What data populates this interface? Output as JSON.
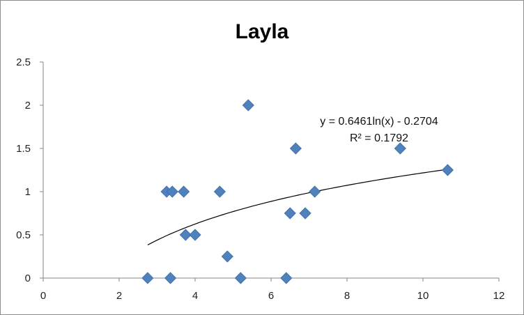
{
  "chart_data": {
    "type": "scatter",
    "title": "Layla",
    "xlabel": "",
    "ylabel": "",
    "xlim": [
      0,
      12
    ],
    "ylim": [
      0,
      2.5
    ],
    "x_ticks": [
      "0",
      "2",
      "4",
      "6",
      "8",
      "10",
      "12"
    ],
    "y_ticks": [
      "0",
      "0.5",
      "1",
      "1.5",
      "2",
      "2.5"
    ],
    "grid": false,
    "legend": "none",
    "marker": "diamond",
    "marker_color": "#4f81bd",
    "points": [
      {
        "x": 2.75,
        "y": 0
      },
      {
        "x": 3.25,
        "y": 1
      },
      {
        "x": 3.35,
        "y": 0
      },
      {
        "x": 3.4,
        "y": 1
      },
      {
        "x": 3.7,
        "y": 1
      },
      {
        "x": 3.75,
        "y": 0.5
      },
      {
        "x": 4.0,
        "y": 0.5
      },
      {
        "x": 4.65,
        "y": 1
      },
      {
        "x": 4.85,
        "y": 0.25
      },
      {
        "x": 5.2,
        "y": 0
      },
      {
        "x": 5.4,
        "y": 2
      },
      {
        "x": 6.4,
        "y": 0
      },
      {
        "x": 6.5,
        "y": 0.75
      },
      {
        "x": 6.65,
        "y": 1.5
      },
      {
        "x": 6.9,
        "y": 0.75
      },
      {
        "x": 7.15,
        "y": 1
      },
      {
        "x": 9.4,
        "y": 1.5
      },
      {
        "x": 10.65,
        "y": 1.25
      }
    ],
    "trendline": {
      "type": "logarithmic",
      "a": 0.6461,
      "b": -0.2704,
      "x_from": 2.75,
      "x_to": 10.65,
      "color": "#000000",
      "equation": "y = 0.6461ln(x) - 0.2704",
      "r_squared": "R² = 0.1792"
    }
  }
}
